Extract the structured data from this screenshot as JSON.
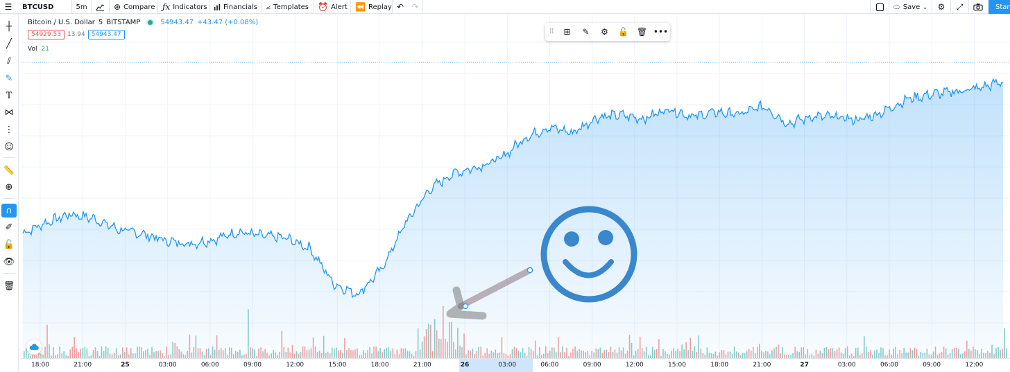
{
  "toolbar": {
    "symbol": "BTCUSD",
    "interval": "5m",
    "compare_label": "Compare",
    "indicators_label": "Indicators",
    "financials_label": "Financials",
    "templates_label": "Templates",
    "alert_label": "Alert",
    "replay_label": "Replay",
    "save_label": "Save",
    "start_label": "Start"
  },
  "legend": {
    "title": "Bitcoin / U.S. Dollar",
    "interval": "5",
    "exchange": "BITSTAMP",
    "last_price": "54943.47",
    "change": "+43.47 (+0.08%)",
    "bid": "54929.53",
    "spread": "13.94",
    "ask": "54943.47",
    "vol_label": "Vol",
    "vol_value": "21"
  },
  "colors": {
    "line": "#2196f3",
    "area": "#2196f3",
    "vol_up": "#26a69a",
    "vol_down": "#ef5350",
    "accent": "#2196f3",
    "smiley": "#3a87cc",
    "arrow": "#8c7480"
  },
  "icons": {
    "menu": "menu-icon",
    "chart_type": "bar-chart-icon",
    "compare": "plus-circle-icon",
    "indicators": "fx-icon",
    "financials": "financials-icon",
    "templates": "templates-icon",
    "alert": "alarm-clock-icon",
    "replay": "rewind-icon",
    "undo": "undo-icon",
    "redo": "redo-icon",
    "layout": "layout-icon",
    "save": "cloud-icon",
    "settings": "gear-icon",
    "fullscreen": "fullscreen-icon",
    "snapshot": "camera-icon"
  },
  "time_axis": {
    "labels": [
      "18:00",
      "21:00",
      "25",
      "03:00",
      "06:00",
      "09:00",
      "12:00",
      "15:00",
      "18:00",
      "21:00",
      "26",
      "03:00",
      "06:00",
      "09:00",
      "12:00",
      "15:00",
      "18:00",
      "21:00",
      "27",
      "03:00",
      "06:00",
      "09:00",
      "12:00"
    ]
  },
  "chart_data": {
    "type": "area",
    "series_name": "BTCUSD",
    "x_labels": [
      "18:00",
      "21:00",
      "25",
      "03:00",
      "06:00",
      "09:00",
      "12:00",
      "15:00",
      "18:00",
      "21:00",
      "26",
      "03:00",
      "06:00",
      "09:00",
      "12:00",
      "15:00",
      "18:00",
      "21:00",
      "27",
      "03:00",
      "06:00",
      "09:00",
      "12:00"
    ],
    "price_path": [
      52810,
      52960,
      53080,
      53010,
      52860,
      52800,
      52700,
      52660,
      52720,
      52830,
      52770,
      52740,
      52600,
      52100,
      51950,
      52300,
      52950,
      53420,
      53650,
      53740,
      53860,
      54150,
      54300,
      54220,
      54440,
      54470,
      54420,
      54560,
      54450,
      54510,
      54480,
      54600,
      54350,
      54450,
      54440,
      54400,
      54520,
      54700,
      54760,
      54800,
      54850,
      54943.47
    ],
    "last_price": 54943.47,
    "volume_note": "volume histogram at bottom (green up / red down)"
  },
  "drawings": {
    "arrow": "arrow-drawing",
    "smiley": "smiley-face-drawing"
  }
}
